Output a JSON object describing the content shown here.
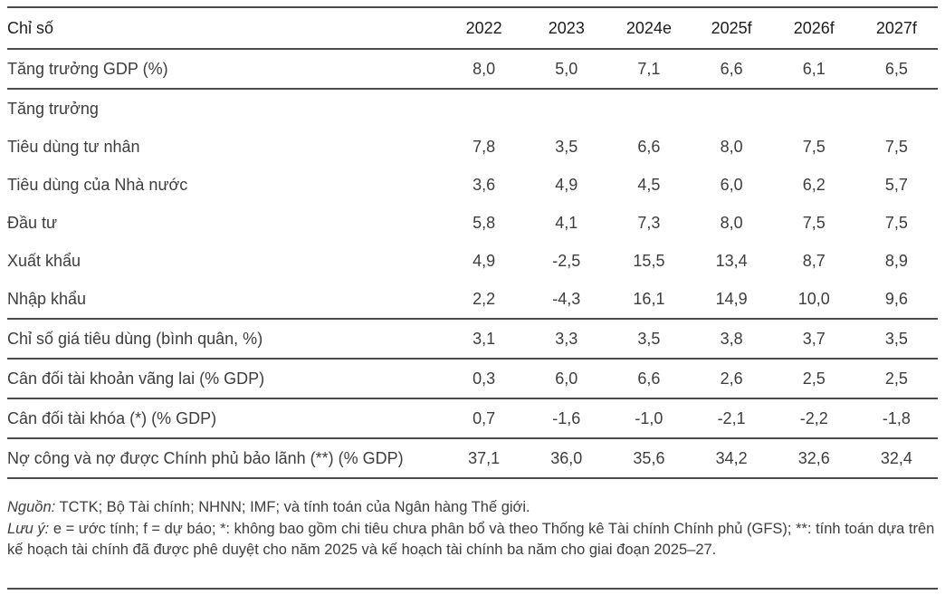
{
  "table": {
    "header": {
      "label": "Chỉ số",
      "years": [
        "2022",
        "2023",
        "2024e",
        "2025f",
        "2026f",
        "2027f"
      ]
    },
    "rows": [
      {
        "label": "Tăng trưởng GDP (%)",
        "values": [
          "8,0",
          "5,0",
          "7,1",
          "6,6",
          "6,1",
          "6,5"
        ]
      },
      {
        "label": "Tăng trưởng"
      },
      {
        "label": "Tiêu dùng tư nhân",
        "values": [
          "7,8",
          "3,5",
          "6,6",
          "8,0",
          "7,5",
          "7,5"
        ]
      },
      {
        "label": "Tiêu dùng của Nhà nước",
        "values": [
          "3,6",
          "4,9",
          "4,5",
          "6,0",
          "6,2",
          "5,7"
        ]
      },
      {
        "label": "Đầu tư",
        "values": [
          "5,8",
          "4,1",
          "7,3",
          "8,0",
          "7,5",
          "7,5"
        ]
      },
      {
        "label": "Xuất khẩu",
        "values": [
          "4,9",
          "-2,5",
          "15,5",
          "13,4",
          "8,7",
          "8,9"
        ]
      },
      {
        "label": "Nhập khẩu",
        "values": [
          "2,2",
          "-4,3",
          "16,1",
          "14,9",
          "10,0",
          "9,6"
        ]
      },
      {
        "label": "Chỉ số giá tiêu dùng (bình quân, %)",
        "values": [
          "3,1",
          "3,3",
          "3,5",
          "3,8",
          "3,7",
          "3,5"
        ]
      },
      {
        "label": "Cân đối tài khoản vãng lai (% GDP)",
        "values": [
          "0,3",
          "6,0",
          "6,6",
          "2,6",
          "2,5",
          "2,5"
        ]
      },
      {
        "label": "Cân đối tài khóa (*) (% GDP)",
        "values": [
          "0,7",
          "-1,6",
          "-1,0",
          "-2,1",
          "-2,2",
          "-1,8"
        ]
      },
      {
        "label": "Nợ công và nợ được Chính phủ bảo lãnh (**) (% GDP)",
        "values": [
          "37,1",
          "36,0",
          "35,6",
          "34,2",
          "32,6",
          "32,4"
        ]
      }
    ]
  },
  "notes": {
    "source_label": "Nguồn:",
    "source_text": " TCTK; Bộ Tài chính; NHNN; IMF; và tính toán của Ngân hàng Thế giới.",
    "note_label": "Lưu ý:",
    "note_text": " e = ước tính; f = dự báo; *: không bao gồm chi tiêu chưa phân bổ và theo Thống kê Tài chính Chính phủ (GFS); **: tính toán dựa trên kế hoạch tài chính đã được phê duyệt cho năm 2025 và kế hoạch tài chính ba năm cho giai đoạn 2025–27."
  },
  "colors": {
    "text": "#3d3d3d",
    "header_text": "#1c1c1c",
    "rule": "#4c4c4c",
    "background": "#ffffff"
  }
}
